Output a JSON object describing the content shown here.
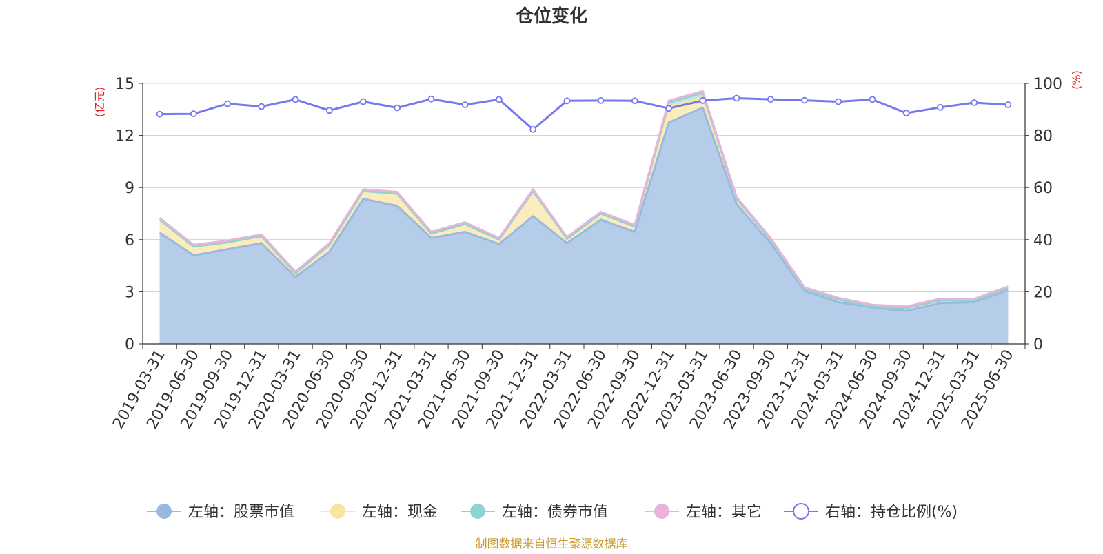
{
  "chart_data": {
    "type": "area",
    "title": "仓位变化",
    "left_unit": "(亿元)",
    "right_unit": "(%)",
    "left_ylim": [
      0,
      15
    ],
    "left_yticks": [
      0,
      3,
      6,
      9,
      12,
      15
    ],
    "right_ylim": [
      0,
      100
    ],
    "right_yticks": [
      0,
      20,
      40,
      60,
      80,
      100
    ],
    "grid": true,
    "legend_position": "bottom",
    "x": [
      "2019-03-31",
      "2019-06-30",
      "2019-09-30",
      "2019-12-31",
      "2020-03-31",
      "2020-06-30",
      "2020-09-30",
      "2020-12-31",
      "2021-03-31",
      "2021-06-30",
      "2021-09-30",
      "2021-12-31",
      "2022-03-31",
      "2022-06-30",
      "2022-09-30",
      "2022-12-31",
      "2023-03-31",
      "2023-06-30",
      "2023-09-30",
      "2023-12-31",
      "2024-03-31",
      "2024-06-30",
      "2024-09-30",
      "2024-12-31",
      "2025-03-31",
      "2025-06-30"
    ],
    "series": [
      {
        "name": "左轴：股票市值",
        "axis": "left",
        "kind": "stack",
        "color": "#9ab8e0",
        "fill": "#b6cdea",
        "values": [
          6.4,
          5.1,
          5.45,
          5.8,
          3.85,
          5.3,
          8.35,
          7.95,
          6.1,
          6.45,
          5.75,
          7.35,
          5.8,
          7.15,
          6.45,
          12.75,
          13.6,
          8.05,
          5.8,
          3.05,
          2.4,
          2.1,
          1.9,
          2.35,
          2.4,
          3.1
        ]
      },
      {
        "name": "左轴：现金",
        "axis": "left",
        "kind": "stack",
        "color": "#f7e6a0",
        "fill": "#faecbb",
        "values": [
          0.75,
          0.5,
          0.4,
          0.4,
          0.2,
          0.4,
          0.45,
          0.7,
          0.25,
          0.45,
          0.25,
          1.45,
          0.25,
          0.35,
          0.3,
          0.9,
          0.6,
          0.3,
          0.2,
          0.1,
          0.15,
          0.05,
          0.15,
          0.15,
          0.1,
          0.1
        ]
      },
      {
        "name": "左轴：债券市值",
        "axis": "left",
        "kind": "stack",
        "color": "#8fd3d3",
        "fill": "#bfe6e3",
        "values": [
          0,
          0,
          0,
          0,
          0,
          0,
          0,
          0,
          0,
          0,
          0,
          0,
          0,
          0,
          0,
          0.25,
          0.25,
          0,
          0,
          0,
          0,
          0,
          0,
          0,
          0,
          0
        ]
      },
      {
        "name": "左轴：其它",
        "axis": "left",
        "kind": "stack",
        "color": "#e8b4da",
        "fill": "#f0cde6",
        "values": [
          0.1,
          0.1,
          0.1,
          0.1,
          0.1,
          0.1,
          0.1,
          0.1,
          0.1,
          0.1,
          0.1,
          0.1,
          0.1,
          0.1,
          0.1,
          0.1,
          0.1,
          0.1,
          0.1,
          0.1,
          0.1,
          0.1,
          0.1,
          0.1,
          0.1,
          0.1
        ]
      },
      {
        "name": "右轴：持仓比例(%)",
        "axis": "right",
        "kind": "line",
        "color": "#7777ee",
        "values": [
          88.2,
          88.3,
          92.2,
          91.1,
          93.8,
          89.6,
          93.0,
          90.6,
          94.0,
          91.8,
          93.8,
          82.3,
          93.3,
          93.4,
          93.3,
          90.4,
          93.4,
          94.3,
          93.9,
          93.5,
          93.0,
          93.8,
          88.6,
          90.8,
          92.6,
          91.8
        ]
      }
    ],
    "source": "制图数据来自恒生聚源数据库",
    "colors": {
      "axis_label_red": "#e02020",
      "source_text": "#c89a30",
      "grid": "#cccccc",
      "axis": "#333333"
    }
  }
}
